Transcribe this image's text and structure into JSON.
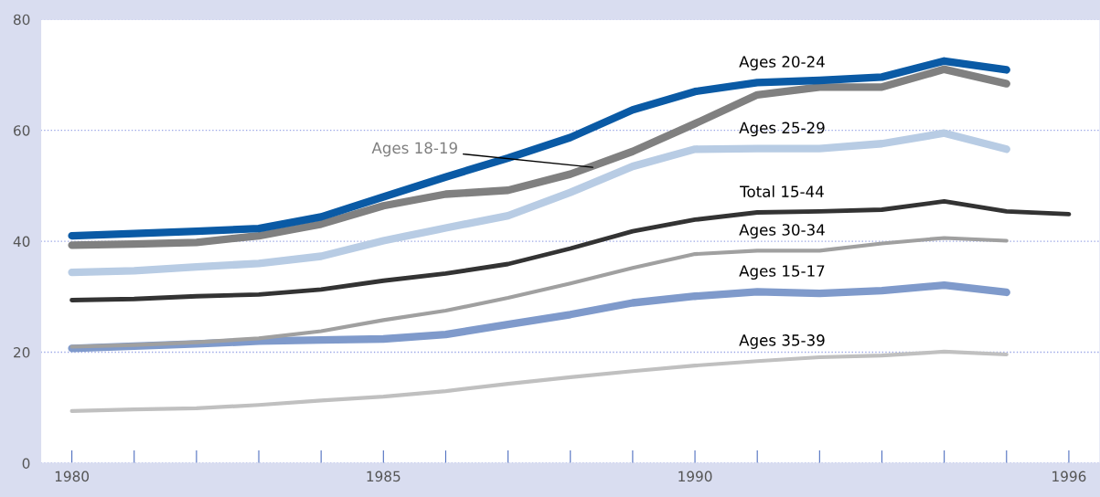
{
  "chart_data": {
    "type": "line",
    "x": [
      1980,
      1981,
      1982,
      1983,
      1984,
      1985,
      1986,
      1987,
      1988,
      1989,
      1990,
      1991,
      1992,
      1993,
      1994,
      1995
    ],
    "series": [
      {
        "name": "Ages 20-24",
        "color": "#0a5aa5",
        "values": [
          41,
          41.4,
          41.8,
          42.3,
          44.4,
          48,
          51.6,
          55,
          58.7,
          63.7,
          67,
          68.6,
          69,
          69.6,
          72.5,
          70.9
        ]
      },
      {
        "name": "Ages 18-19",
        "color": "#808080",
        "values": [
          39.3,
          39.5,
          39.8,
          41,
          43.1,
          46.4,
          48.5,
          49.2,
          52.1,
          56.2,
          61.2,
          66.4,
          67.8,
          67.8,
          71,
          68.4
        ]
      },
      {
        "name": "Ages 25-29",
        "color": "#b8cce4",
        "values": [
          34.4,
          34.7,
          35.4,
          36,
          37.3,
          40.1,
          42.4,
          44.6,
          48.8,
          53.5,
          56.6,
          56.7,
          56.7,
          57.6,
          59.5,
          56.6
        ]
      },
      {
        "name": "Total 15-44",
        "color": "#333333",
        "x": [
          1980,
          1981,
          1982,
          1983,
          1984,
          1985,
          1986,
          1987,
          1988,
          1989,
          1990,
          1991,
          1992,
          1993,
          1994,
          1995,
          1996
        ],
        "values": [
          29.4,
          29.6,
          30.1,
          30.4,
          31.3,
          32.9,
          34.2,
          35.9,
          38.7,
          41.8,
          43.9,
          45.2,
          45.4,
          45.7,
          47.2,
          45.4,
          44.9
        ]
      },
      {
        "name": "Ages 30-34",
        "color": "#a0a0a0",
        "values": [
          21,
          21.3,
          21.8,
          22.5,
          23.8,
          25.8,
          27.5,
          29.8,
          32.4,
          35.2,
          37.7,
          38.3,
          38.3,
          39.6,
          40.6,
          40.1
        ]
      },
      {
        "name": "Ages 15-17",
        "color": "#7f9acb",
        "values": [
          20.7,
          21.1,
          21.5,
          22,
          22.2,
          22.4,
          23.2,
          25,
          26.8,
          28.9,
          30.1,
          30.9,
          30.6,
          31.1,
          32.1,
          30.8
        ]
      },
      {
        "name": "Ages 35-39",
        "color": "#c0c0c0",
        "values": [
          9.4,
          9.7,
          9.9,
          10.5,
          11.3,
          12,
          13,
          14.3,
          15.5,
          16.6,
          17.6,
          18.4,
          19.1,
          19.4,
          20.1,
          19.6
        ]
      }
    ],
    "xlim": [
      1979.5,
      1996.5
    ],
    "xticks": [
      1980,
      {
        "value": 1981,
        "label": null
      },
      {
        "value": 1982,
        "label": null
      },
      {
        "value": 1983,
        "label": null
      },
      {
        "value": 1984,
        "label": null
      },
      1985,
      {
        "value": 1986,
        "label": null
      },
      {
        "value": 1987,
        "label": null
      },
      {
        "value": 1988,
        "label": null
      },
      {
        "value": 1989,
        "label": null
      },
      1990,
      {
        "value": 1991,
        "label": null
      },
      {
        "value": 1992,
        "label": null
      },
      {
        "value": 1993,
        "label": null
      },
      {
        "value": 1994,
        "label": null
      },
      {
        "value": 1995,
        "label": null
      },
      1996
    ],
    "ylim": [
      0,
      80
    ],
    "yticks": [
      0,
      20,
      40,
      60,
      80
    ],
    "grid": "y",
    "legend": false,
    "marker": "none",
    "line_style": "solid"
  }
}
